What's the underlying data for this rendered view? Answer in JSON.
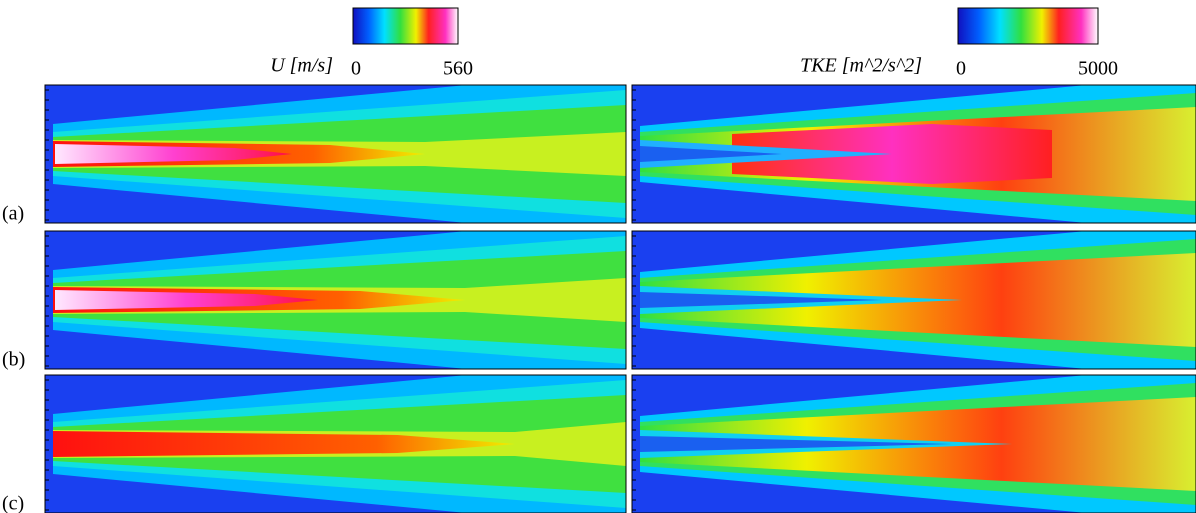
{
  "colorbars": [
    {
      "label": "U [m/s]",
      "min": 0,
      "max": 560
    },
    {
      "label": "TKE [m^2/s^2]",
      "min": 0,
      "max": 5000
    }
  ],
  "panels": [
    {
      "label": "(a)"
    },
    {
      "label": "(b)"
    },
    {
      "label": "(c)"
    }
  ]
}
